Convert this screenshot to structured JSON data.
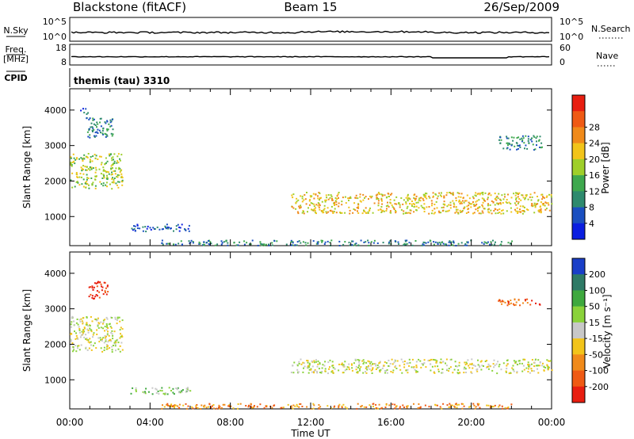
{
  "header": {
    "radar": "Blackstone (fitACF)",
    "beam": "Beam 15",
    "date": "26/Sep/2009"
  },
  "top_panels": {
    "left_labels": {
      "nsky": "N.Sky",
      "freq": "Freq.",
      "freq_unit": "[MHz]",
      "cpid": "CPID"
    },
    "right_labels": {
      "nsearch": "N.Search",
      "nave": "Nave"
    },
    "nsky_ticks": [
      "10^5",
      "10^0"
    ],
    "nsearch_ticks": [
      "10^5",
      "10^0"
    ],
    "freq_ticks": [
      "18",
      "8"
    ],
    "nave_ticks": [
      "60",
      "0"
    ],
    "cpid_text": "themis (tau) 3310"
  },
  "chart_data": [
    {
      "type": "heatmap",
      "name": "power",
      "ylabel": "Slant Range [km]",
      "xlabel": "",
      "x_ticks": [
        "00:00",
        "04:00",
        "08:00",
        "12:00",
        "16:00",
        "20:00",
        "00:00"
      ],
      "y_ticks": [
        1000,
        2000,
        3000,
        4000
      ],
      "xlim_hours": [
        0,
        24
      ],
      "ylim_km": [
        180,
        4600
      ],
      "colorbar": {
        "label": "Power [dB]",
        "ticks": [
          "4",
          "8",
          "12",
          "16",
          "20",
          "24",
          "28"
        ],
        "colors": [
          "#0a1ee0",
          "#1a4fc0",
          "#2e8a6e",
          "#3ea84e",
          "#9fcf2a",
          "#f2c41a",
          "#f08a1a",
          "#ef5a14",
          "#e81e10"
        ]
      },
      "regions": [
        {
          "t": [
            0.0,
            2.6
          ],
          "r": [
            1800,
            2800
          ],
          "level": 4
        },
        {
          "t": [
            0.8,
            2.2
          ],
          "r": [
            3200,
            3800
          ],
          "level": 2
        },
        {
          "t": [
            0.5,
            0.9
          ],
          "r": [
            3900,
            4100
          ],
          "level": 1
        },
        {
          "t": [
            3.0,
            6.0
          ],
          "r": [
            600,
            800
          ],
          "level": 1
        },
        {
          "t": [
            4.5,
            22.0
          ],
          "r": [
            200,
            350
          ],
          "level": 2
        },
        {
          "t": [
            11.0,
            24.0
          ],
          "r": [
            1100,
            1700
          ],
          "level": 5
        },
        {
          "t": [
            21.3,
            23.5
          ],
          "r": [
            2900,
            3300
          ],
          "level": 2
        }
      ]
    },
    {
      "type": "heatmap",
      "name": "velocity",
      "ylabel": "Slant Range [km]",
      "xlabel": "Time UT",
      "x_ticks": [
        "00:00",
        "04:00",
        "08:00",
        "12:00",
        "16:00",
        "20:00",
        "00:00"
      ],
      "y_ticks": [
        1000,
        2000,
        3000,
        4000
      ],
      "xlim_hours": [
        0,
        24
      ],
      "ylim_km": [
        180,
        4600
      ],
      "colorbar": {
        "label": "Velocity [m s⁻¹]",
        "ticks": [
          "200",
          "100",
          "50",
          "15",
          "-15",
          "-50",
          "-100",
          "-200"
        ],
        "colors": [
          "#1a3fc8",
          "#2e7a66",
          "#3ea83e",
          "#8ad23a",
          "#c8c8c8",
          "#f2c41a",
          "#f08a1a",
          "#ef5a14",
          "#e81e10"
        ]
      },
      "regions": [
        {
          "t": [
            0.0,
            2.6
          ],
          "r": [
            1800,
            2800
          ],
          "level": 4
        },
        {
          "t": [
            0.9,
            1.9
          ],
          "r": [
            3300,
            3800
          ],
          "level": 8
        },
        {
          "t": [
            3.0,
            6.0
          ],
          "r": [
            600,
            800
          ],
          "level": 3
        },
        {
          "t": [
            4.5,
            22.0
          ],
          "r": [
            200,
            350
          ],
          "level": 6
        },
        {
          "t": [
            11.0,
            24.0
          ],
          "r": [
            1200,
            1600
          ],
          "level": 4
        },
        {
          "t": [
            21.3,
            23.5
          ],
          "r": [
            3100,
            3300
          ],
          "level": 7
        }
      ]
    }
  ]
}
